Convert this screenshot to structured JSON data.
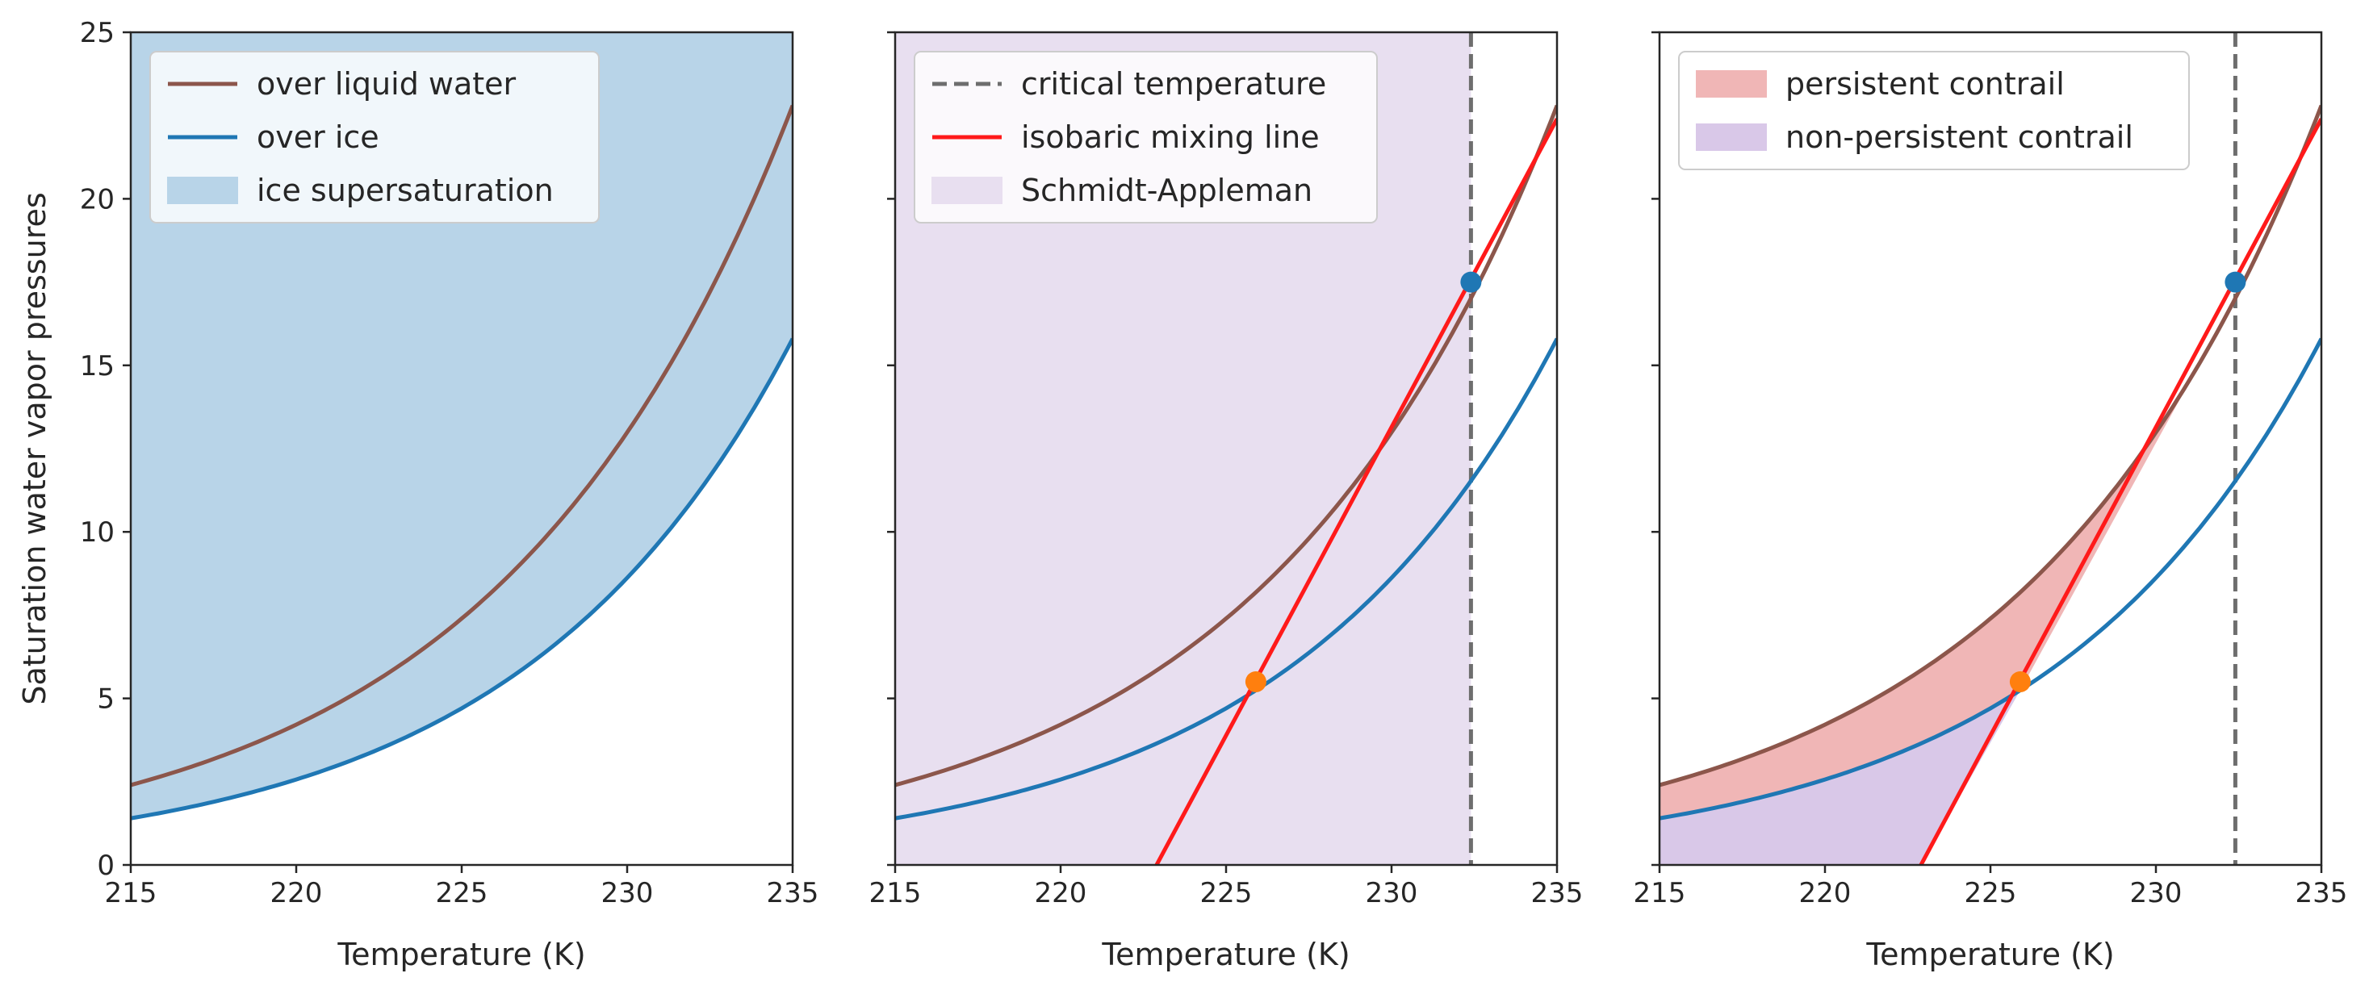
{
  "chart_data": [
    {
      "type": "line",
      "panel": "left",
      "xlabel": "Temperature (K)",
      "ylabel": "Saturation water vapor pressures",
      "xlim": [
        215,
        235
      ],
      "ylim": [
        0,
        25
      ],
      "xticks": [
        "215",
        "220",
        "225",
        "230",
        "235"
      ],
      "yticks": [
        "0",
        "5",
        "10",
        "15",
        "20",
        "25"
      ],
      "x": [
        215,
        217.5,
        220,
        222.5,
        225,
        227.5,
        230,
        232.5,
        235
      ],
      "series": [
        {
          "name": "over liquid water",
          "color": "#8c564b",
          "values": [
            2.4,
            3.3,
            4.4,
            5.9,
            7.9,
            10.4,
            13.6,
            17.6,
            22.8
          ]
        },
        {
          "name": "over ice",
          "color": "#1f77b4",
          "values": [
            1.4,
            2.0,
            2.7,
            3.7,
            5.0,
            6.7,
            8.9,
            11.9,
            15.8
          ]
        }
      ],
      "legend": {
        "position": "upper-left",
        "entries": [
          {
            "label": "over liquid water",
            "kind": "line",
            "color": "#8c564b"
          },
          {
            "label": "over ice",
            "kind": "line",
            "color": "#1f77b4"
          },
          {
            "label": "ice supersaturation",
            "kind": "patch",
            "color": "#b8d4e8"
          }
        ]
      },
      "fill": {
        "label": "ice supersaturation",
        "color": "#b8d4e8",
        "region": "above over ice"
      }
    },
    {
      "type": "line",
      "panel": "middle",
      "xlabel": "Temperature (K)",
      "xlim": [
        215,
        235
      ],
      "ylim": [
        0,
        25
      ],
      "xticks": [
        "215",
        "220",
        "225",
        "230",
        "235"
      ],
      "x": [
        215,
        217.5,
        220,
        222.5,
        225,
        227.5,
        230,
        232.5,
        235
      ],
      "series": [
        {
          "name": "over liquid water",
          "color": "#8c564b",
          "values": [
            2.4,
            3.3,
            4.4,
            5.9,
            7.9,
            10.4,
            13.6,
            17.6,
            22.8
          ]
        },
        {
          "name": "over ice",
          "color": "#1f77b4",
          "values": [
            1.4,
            2.0,
            2.7,
            3.7,
            5.0,
            6.7,
            8.9,
            11.9,
            15.8
          ]
        }
      ],
      "mixing_line": {
        "label": "isobaric mixing line",
        "color": "#ff1a1a",
        "from": [
          222.9,
          0
        ],
        "to": [
          235,
          22.4
        ]
      },
      "critical_temperature": {
        "label": "critical temperature",
        "value": 232.4
      },
      "points": [
        {
          "name": "tangent-point",
          "x": 232.4,
          "y": 17.5,
          "color": "#1f77b4"
        },
        {
          "name": "ice-intersection",
          "x": 225.9,
          "y": 5.5,
          "color": "#ff7f0e"
        }
      ],
      "legend": {
        "position": "upper-left",
        "entries": [
          {
            "label": "critical temperature",
            "kind": "dashed",
            "color": "#6e6e6e"
          },
          {
            "label": "isobaric mixing line",
            "kind": "line",
            "color": "#ff1a1a"
          },
          {
            "label": "Schmidt-Appleman",
            "kind": "patch",
            "color": "#e8dff0"
          }
        ]
      },
      "fill": {
        "label": "Schmidt-Appleman",
        "color": "#e8dff0",
        "region": "T < 232.4"
      }
    },
    {
      "type": "line",
      "panel": "right",
      "xlabel": "Temperature (K)",
      "xlim": [
        215,
        235
      ],
      "ylim": [
        0,
        25
      ],
      "xticks": [
        "215",
        "220",
        "225",
        "230",
        "235"
      ],
      "x": [
        215,
        217.5,
        220,
        222.5,
        225,
        227.5,
        230,
        232.5,
        235
      ],
      "series": [
        {
          "name": "over liquid water",
          "color": "#8c564b",
          "values": [
            2.4,
            3.3,
            4.4,
            5.9,
            7.9,
            10.4,
            13.6,
            17.6,
            22.8
          ]
        },
        {
          "name": "over ice",
          "color": "#1f77b4",
          "values": [
            1.4,
            2.0,
            2.7,
            3.7,
            5.0,
            6.7,
            8.9,
            11.9,
            15.8
          ]
        }
      ],
      "mixing_line": {
        "label": "isobaric mixing line",
        "color": "#ff1a1a",
        "from": [
          222.9,
          0
        ],
        "to": [
          235,
          22.4
        ]
      },
      "critical_temperature": {
        "label": "critical temperature",
        "value": 232.4
      },
      "points": [
        {
          "name": "tangent-point",
          "x": 232.4,
          "y": 17.5,
          "color": "#1f77b4"
        },
        {
          "name": "ice-intersection",
          "x": 225.9,
          "y": 5.5,
          "color": "#ff7f0e"
        }
      ],
      "legend": {
        "position": "upper-left",
        "entries": [
          {
            "label": "persistent contrail",
            "kind": "patch",
            "color": "#f0b6b6"
          },
          {
            "label": "non-persistent contrail",
            "kind": "patch",
            "color": "#d9c8e8"
          }
        ]
      },
      "fills": [
        {
          "label": "persistent contrail",
          "color": "#f0b6b6",
          "region": "between over ice and over liquid water, left of mixing line"
        },
        {
          "label": "non-persistent contrail",
          "color": "#d9c8e8",
          "region": "below over ice, left of mixing line"
        }
      ]
    }
  ]
}
